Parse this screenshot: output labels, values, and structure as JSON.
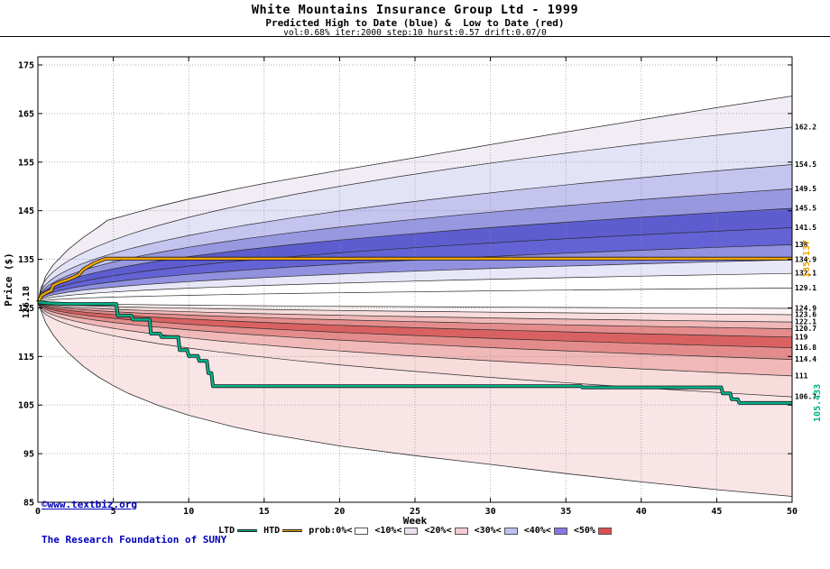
{
  "watermark": {
    "line1": "©www.textbiz.org",
    "line2": "The Research Foundation of SUNY",
    "color": "#0000bb"
  },
  "chart_data": {
    "type": "area",
    "title": "White Mountains Insurance Group Ltd - 1999",
    "subtitle": "Predicted High to Date (blue) &  Low to Date (red)",
    "params_label": "vol:0.68% iter:2000 step:10 hurst:0.57 drift:0.07/0",
    "params": {
      "vol": "0.68%",
      "iter": 2000,
      "step": 10,
      "hurst": 0.57,
      "drift": "0.07/0"
    },
    "xlabel": "Week",
    "ylabel": "Price ($)",
    "xlim": [
      0,
      50
    ],
    "ylim": [
      85,
      175
    ],
    "xticks": [
      0,
      5,
      10,
      15,
      20,
      25,
      30,
      35,
      40,
      45,
      50
    ],
    "yticks": [
      85,
      95,
      105,
      115,
      125,
      135,
      145,
      155,
      165,
      175
    ],
    "grid": true,
    "start_price": 126.18,
    "start_price_label": "126.18",
    "spread_exponent": 0.45,
    "high_fan": {
      "boundary_ends": [
        129.1,
        132.1,
        134.9,
        138,
        141.5,
        145.5,
        149.5,
        154.5,
        162.2
      ],
      "band_colors": [
        "#ffffff",
        "#e7e7f8",
        "#9191e0",
        "#6363d6",
        "#5d5dd0",
        "#9898e1",
        "#c4c4ef",
        "#e3e3f7"
      ],
      "envelope_fill": "#f2edf5",
      "envelope": [
        [
          0,
          126.18
        ],
        [
          0.5,
          131.5
        ],
        [
          1,
          133.8
        ],
        [
          2,
          137.0
        ],
        [
          3,
          139.5
        ],
        [
          4,
          141.6
        ],
        [
          4.6,
          143.0
        ],
        [
          6,
          144.2
        ],
        [
          8,
          145.9
        ],
        [
          10,
          147.4
        ],
        [
          13,
          149.4
        ],
        [
          15,
          150.6
        ],
        [
          20,
          153.3
        ],
        [
          25,
          155.9
        ],
        [
          30,
          158.6
        ],
        [
          35,
          161.2
        ],
        [
          40,
          163.7
        ],
        [
          45,
          166.2
        ],
        [
          50,
          168.6
        ]
      ]
    },
    "low_fan": {
      "boundary_ends": [
        124.9,
        123.6,
        122.1,
        120.7,
        119,
        116.8,
        114.4,
        111,
        106.7
      ],
      "band_colors": [
        "#fdf3f3",
        "#f8dcdc",
        "#f1b8b8",
        "#e48c8c",
        "#da6161",
        "#e48c8c",
        "#f1b8b8",
        "#f8dcdc"
      ],
      "envelope_fill": "#f9e4e6",
      "envelope": [
        [
          0,
          126.18
        ],
        [
          0.5,
          122.0
        ],
        [
          1,
          119.5
        ],
        [
          1.5,
          117.5
        ],
        [
          2,
          115.8
        ],
        [
          3,
          113.0
        ],
        [
          4,
          110.8
        ],
        [
          5,
          109.0
        ],
        [
          6,
          107.4
        ],
        [
          8,
          104.9
        ],
        [
          10,
          102.9
        ],
        [
          13,
          100.5
        ],
        [
          15,
          99.2
        ],
        [
          20,
          96.6
        ],
        [
          25,
          94.6
        ],
        [
          30,
          92.8
        ],
        [
          35,
          90.9
        ],
        [
          40,
          89.2
        ],
        [
          45,
          87.6
        ],
        [
          50,
          86.2
        ]
      ]
    },
    "series": [
      {
        "name": "HTD",
        "color": "#f0a500",
        "final_value": 135.137,
        "final_label": "135.137",
        "points": [
          [
            0,
            126.18
          ],
          [
            0.25,
            127.6
          ],
          [
            0.6,
            128.2
          ],
          [
            0.9,
            128.6
          ],
          [
            1.0,
            129.6
          ],
          [
            1.4,
            130.2
          ],
          [
            1.9,
            130.7
          ],
          [
            2.3,
            131.2
          ],
          [
            2.7,
            131.8
          ],
          [
            3.0,
            132.9
          ],
          [
            3.4,
            133.6
          ],
          [
            3.8,
            134.3
          ],
          [
            4.2,
            134.8
          ],
          [
            4.5,
            135.137
          ],
          [
            50,
            135.137
          ]
        ]
      },
      {
        "name": "LTD",
        "color": "#00b289",
        "final_value": 105.433,
        "final_label": "105.433",
        "points": [
          [
            0,
            126.18
          ],
          [
            0.7,
            125.95
          ],
          [
            2.0,
            125.8
          ],
          [
            5.2,
            125.8
          ],
          [
            5.3,
            123.4
          ],
          [
            6.2,
            123.4
          ],
          [
            6.3,
            122.6
          ],
          [
            7.4,
            122.6
          ],
          [
            7.5,
            119.7
          ],
          [
            8.1,
            119.7
          ],
          [
            8.2,
            119.0
          ],
          [
            9.3,
            119.0
          ],
          [
            9.4,
            116.3
          ],
          [
            9.9,
            116.3
          ],
          [
            10.0,
            115.1
          ],
          [
            10.6,
            115.1
          ],
          [
            10.7,
            114.1
          ],
          [
            11.2,
            114.1
          ],
          [
            11.3,
            111.6
          ],
          [
            11.5,
            111.6
          ],
          [
            11.6,
            108.9
          ],
          [
            36.0,
            108.9
          ],
          [
            36.1,
            108.65
          ],
          [
            45.3,
            108.65
          ],
          [
            45.4,
            107.4
          ],
          [
            45.9,
            107.4
          ],
          [
            46.0,
            106.2
          ],
          [
            46.4,
            106.2
          ],
          [
            46.5,
            105.433
          ],
          [
            50,
            105.433
          ]
        ]
      }
    ],
    "right_axis_labels": [
      "162.2",
      "154.5",
      "149.5",
      "145.5",
      "141.5",
      "138",
      "134.9",
      "132.1",
      "129.1",
      "124.9",
      "123.6",
      "122.1",
      "120.7",
      "119",
      "116.8",
      "114.4",
      "111",
      "106.7"
    ]
  },
  "legend": {
    "items": [
      {
        "label": "LTD",
        "type": "line",
        "color": "#00b289"
      },
      {
        "label": "HTD",
        "type": "line",
        "color": "#f0a500"
      },
      {
        "label": "prob:0%<",
        "type": "box",
        "color": "#ffffff"
      },
      {
        "label": "<10%<",
        "type": "box",
        "color": "#ecdff0"
      },
      {
        "label": "<20%<",
        "type": "box",
        "color": "#f5ccd4"
      },
      {
        "label": "<30%<",
        "type": "box",
        "color": "#bdc1f1"
      },
      {
        "label": "<40%<",
        "type": "box",
        "color": "#8678e2"
      },
      {
        "label": "<50%",
        "type": "box",
        "color": "#da4f4f"
      }
    ]
  }
}
